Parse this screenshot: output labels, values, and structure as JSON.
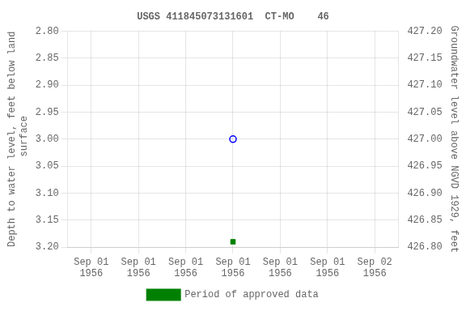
{
  "chart_data": {
    "type": "scatter",
    "title": "USGS 411845073131601  CT-MO    46",
    "y_label": "Depth to water level, feet below land\n surface",
    "y2_label": "Groundwater level above NGVD 1929, feet",
    "categories": [
      "Sep 01\n1956",
      "Sep 01\n1956",
      "Sep 01\n1956",
      "Sep 01\n1956",
      "Sep 01\n1956",
      "Sep 01\n1956",
      "Sep 02\n1956"
    ],
    "series": [
      {
        "color": "blue",
        "marker": "open-circle",
        "values": [
          null,
          null,
          null,
          3.0,
          null,
          null,
          null
        ]
      },
      {
        "name": "Period of approved data",
        "color": "#008000",
        "marker": "square",
        "values": [
          null,
          null,
          null,
          3.19,
          null,
          null,
          null
        ]
      }
    ],
    "ylim": [
      3.2,
      2.8
    ],
    "yticks": [
      {
        "value": 2.8,
        "label": "2.80"
      },
      {
        "value": 2.85,
        "label": "2.85"
      },
      {
        "value": 2.9,
        "label": "2.90"
      },
      {
        "value": 2.95,
        "label": "2.95"
      },
      {
        "value": 3.0,
        "label": "3.00"
      },
      {
        "value": 3.05,
        "label": "3.05"
      },
      {
        "value": 3.1,
        "label": "3.10"
      },
      {
        "value": 3.15,
        "label": "3.15"
      },
      {
        "value": 3.2,
        "label": "3.20"
      }
    ],
    "y2lim": [
      426.8,
      427.2
    ],
    "y2ticks": [
      {
        "value": 426.8,
        "label": "426.80"
      },
      {
        "value": 426.85,
        "label": "426.85"
      },
      {
        "value": 426.9,
        "label": "426.90"
      },
      {
        "value": 426.95,
        "label": "426.95"
      },
      {
        "value": 427.0,
        "label": "427.00"
      },
      {
        "value": 427.05,
        "label": "427.05"
      },
      {
        "value": 427.1,
        "label": "427.10"
      },
      {
        "value": 427.15,
        "label": "427.15"
      },
      {
        "value": 427.2,
        "label": "427.20"
      }
    ],
    "grid": true,
    "legend": "bottom"
  }
}
